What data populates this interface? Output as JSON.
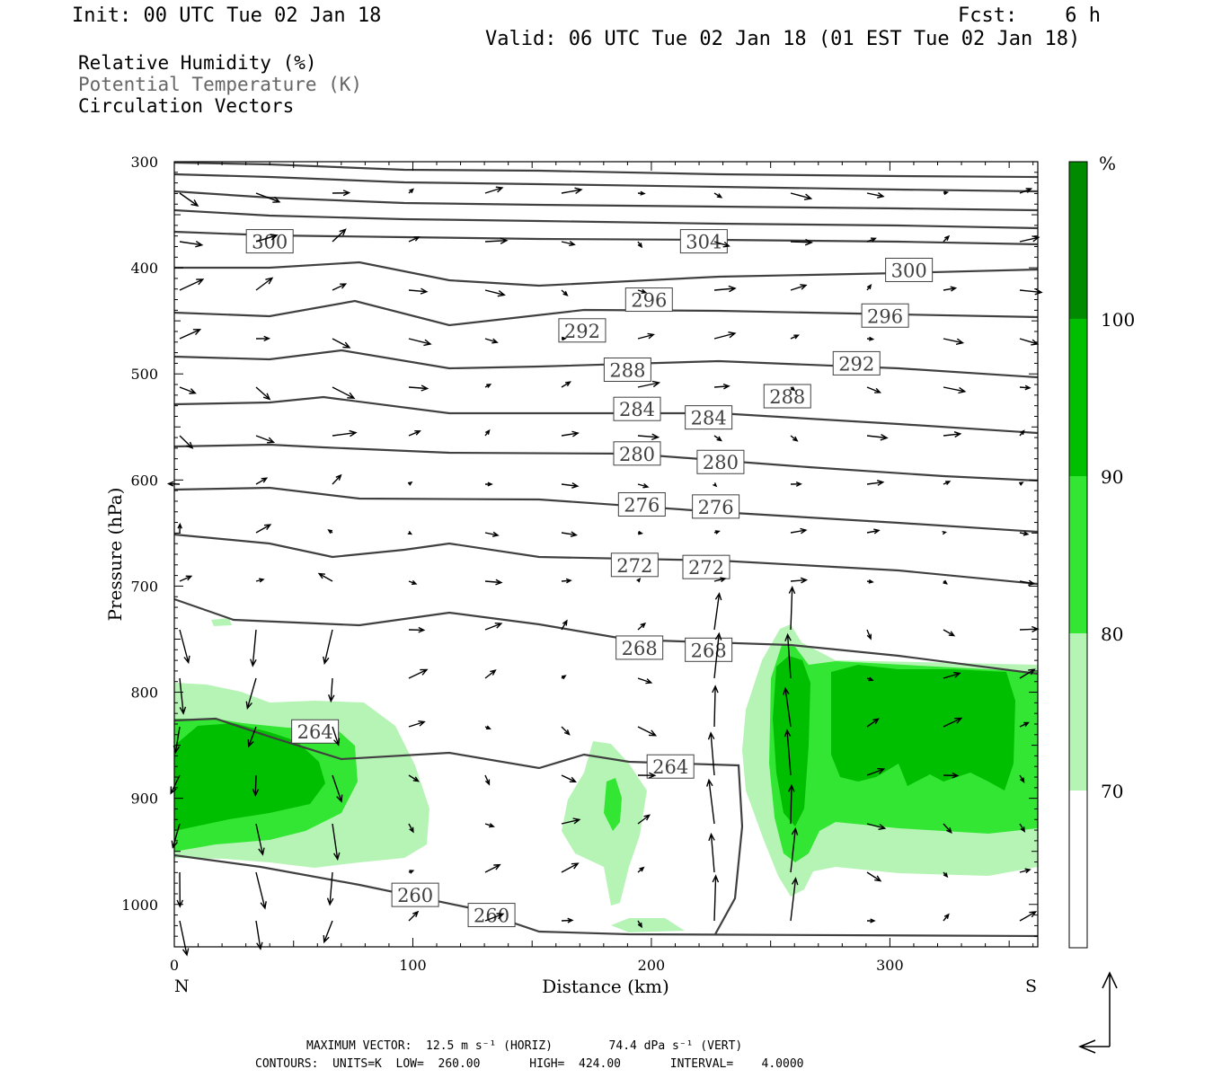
{
  "header": {
    "init": "Init: 00 UTC Tue 02 Jan 18",
    "fcst": "Fcst:    6 h",
    "valid": "Valid: 06 UTC Tue 02 Jan 18 (01 EST Tue 02 Jan 18)"
  },
  "titles": [
    "Relative Humidity (%)",
    "Potential Temperature (K)",
    "Circulation Vectors"
  ],
  "footer": {
    "max_vector": "MAXIMUM VECTOR:  12.5 m s⁻¹ (HORIZ)        74.4 dPa s⁻¹ (VERT)",
    "contours": "CONTOURS:  UNITS=K  LOW=  260.00       HIGH=  424.00       INTERVAL=    4.0000"
  },
  "colors": {
    "rh70": "#b6f4b6",
    "rh80": "#33e633",
    "rh90": "#00bf00",
    "rh100": "#008a00",
    "contour": "#404040"
  },
  "chart_data": {
    "type": "contour",
    "xlabel": "Distance (km)",
    "ylabel": "Pressure (hPa)",
    "xlim": [
      0,
      362
    ],
    "ylim": [
      1040,
      300
    ],
    "x_ticks": [
      0,
      100,
      200,
      300
    ],
    "y_ticks": [
      300,
      400,
      500,
      600,
      700,
      800,
      900,
      1000
    ],
    "x_end_labels": {
      "left": "N",
      "right": "S"
    },
    "colorbar": {
      "unit": "%",
      "levels": [
        70,
        80,
        90,
        100
      ],
      "labels": [
        "70",
        "80",
        "90",
        "100"
      ]
    },
    "theta_labels": [
      {
        "text": "300",
        "x": 40,
        "p": 375
      },
      {
        "text": "304",
        "x": 222,
        "p": 375
      },
      {
        "text": "300",
        "x": 308,
        "p": 402
      },
      {
        "text": "296",
        "x": 199,
        "p": 430
      },
      {
        "text": "296",
        "x": 298,
        "p": 445
      },
      {
        "text": "292",
        "x": 171,
        "p": 459
      },
      {
        "text": "292",
        "x": 286,
        "p": 490
      },
      {
        "text": "288",
        "x": 190,
        "p": 496
      },
      {
        "text": "288",
        "x": 257,
        "p": 521
      },
      {
        "text": "284",
        "x": 194,
        "p": 533
      },
      {
        "text": "284",
        "x": 224,
        "p": 541
      },
      {
        "text": "280",
        "x": 194,
        "p": 575
      },
      {
        "text": "280",
        "x": 229,
        "p": 583
      },
      {
        "text": "276",
        "x": 196,
        "p": 623
      },
      {
        "text": "276",
        "x": 227,
        "p": 625
      },
      {
        "text": "272",
        "x": 193,
        "p": 680
      },
      {
        "text": "272",
        "x": 223,
        "p": 682
      },
      {
        "text": "268",
        "x": 195,
        "p": 758
      },
      {
        "text": "268",
        "x": 224,
        "p": 760
      },
      {
        "text": "264",
        "x": 59,
        "p": 837
      },
      {
        "text": "264",
        "x": 208,
        "p": 870
      },
      {
        "text": "260",
        "x": 101,
        "p": 991
      },
      {
        "text": "260",
        "x": 133,
        "p": 1010
      }
    ]
  }
}
